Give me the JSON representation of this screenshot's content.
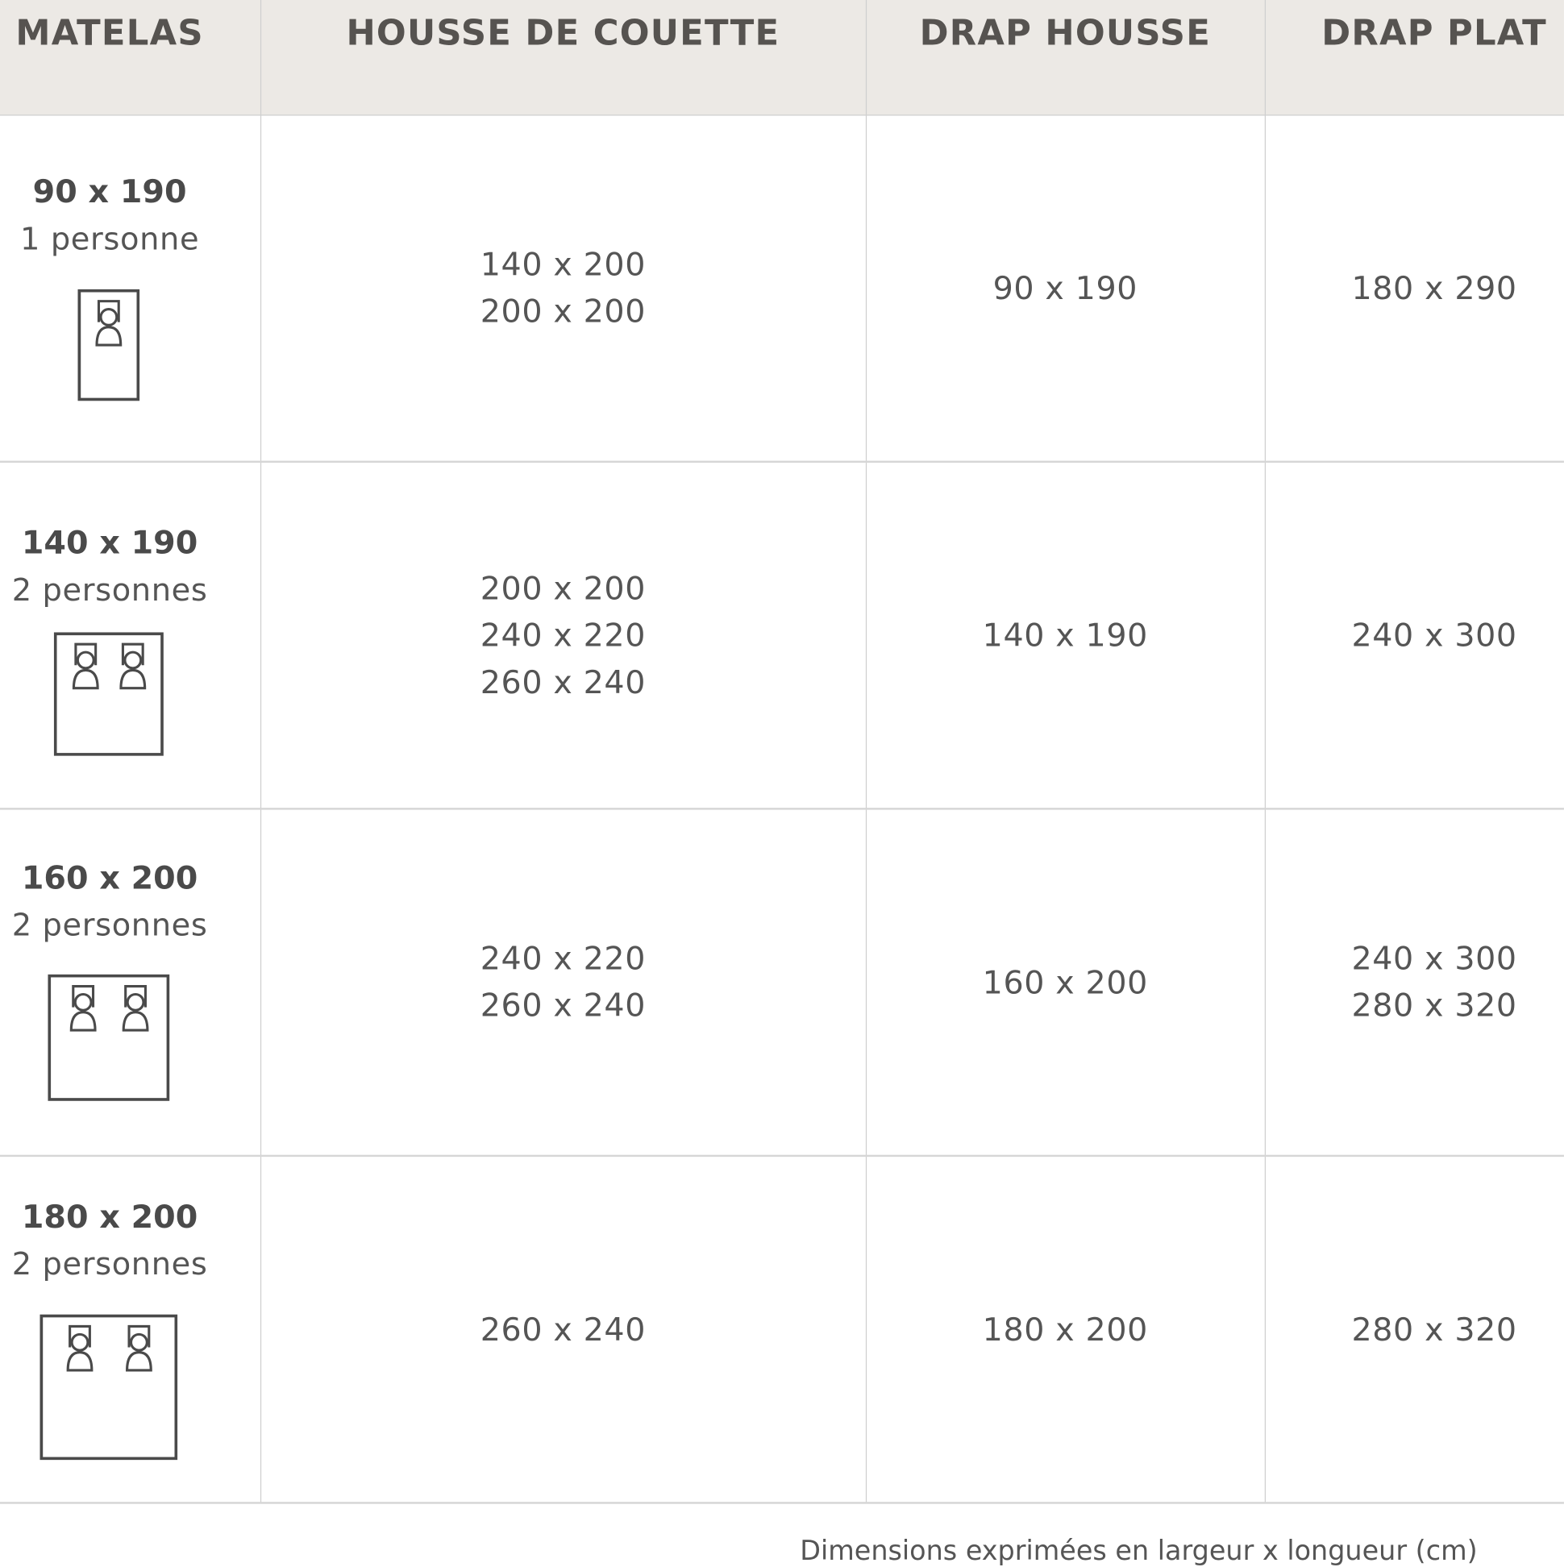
{
  "headers": [
    "MATELAS",
    "HOUSSE DE COUETTE",
    "DRAP HOUSSE",
    "DRAP PLAT"
  ],
  "rows": [
    {
      "matelas": "90 x 190",
      "personnes": "1 personne",
      "sleepers": 1,
      "housse": [
        "140 x 200",
        "200 x 200"
      ],
      "drap_housse": [
        "90 x 190"
      ],
      "drap_plat": [
        "180 x 290"
      ]
    },
    {
      "matelas": "140 x 190",
      "personnes": "2 personnes",
      "sleepers": 2,
      "housse": [
        "200 x 200",
        "240 x 220",
        "260 x 240"
      ],
      "drap_housse": [
        "140 x 190"
      ],
      "drap_plat": [
        "240 x 300"
      ]
    },
    {
      "matelas": "160 x 200",
      "personnes": "2 personnes",
      "sleepers": 2,
      "housse": [
        "240 x 220",
        "260 x 240"
      ],
      "drap_housse": [
        "160 x 200"
      ],
      "drap_plat": [
        "240 x 300",
        "280 x 320"
      ]
    },
    {
      "matelas": "180 x 200",
      "personnes": "2 personnes",
      "sleepers": 2,
      "housse": [
        "260 x 240"
      ],
      "drap_housse": [
        "180 x 200"
      ],
      "drap_plat": [
        "280 x 320"
      ]
    }
  ],
  "footnote": "Dimensions exprimées en largeur x longueur (cm)",
  "colors": {
    "header_bg": "#ece9e5",
    "text": "#555555",
    "lines": "#cfcfcf"
  },
  "icons": [
    "bed-single-icon",
    "bed-double-icon"
  ]
}
